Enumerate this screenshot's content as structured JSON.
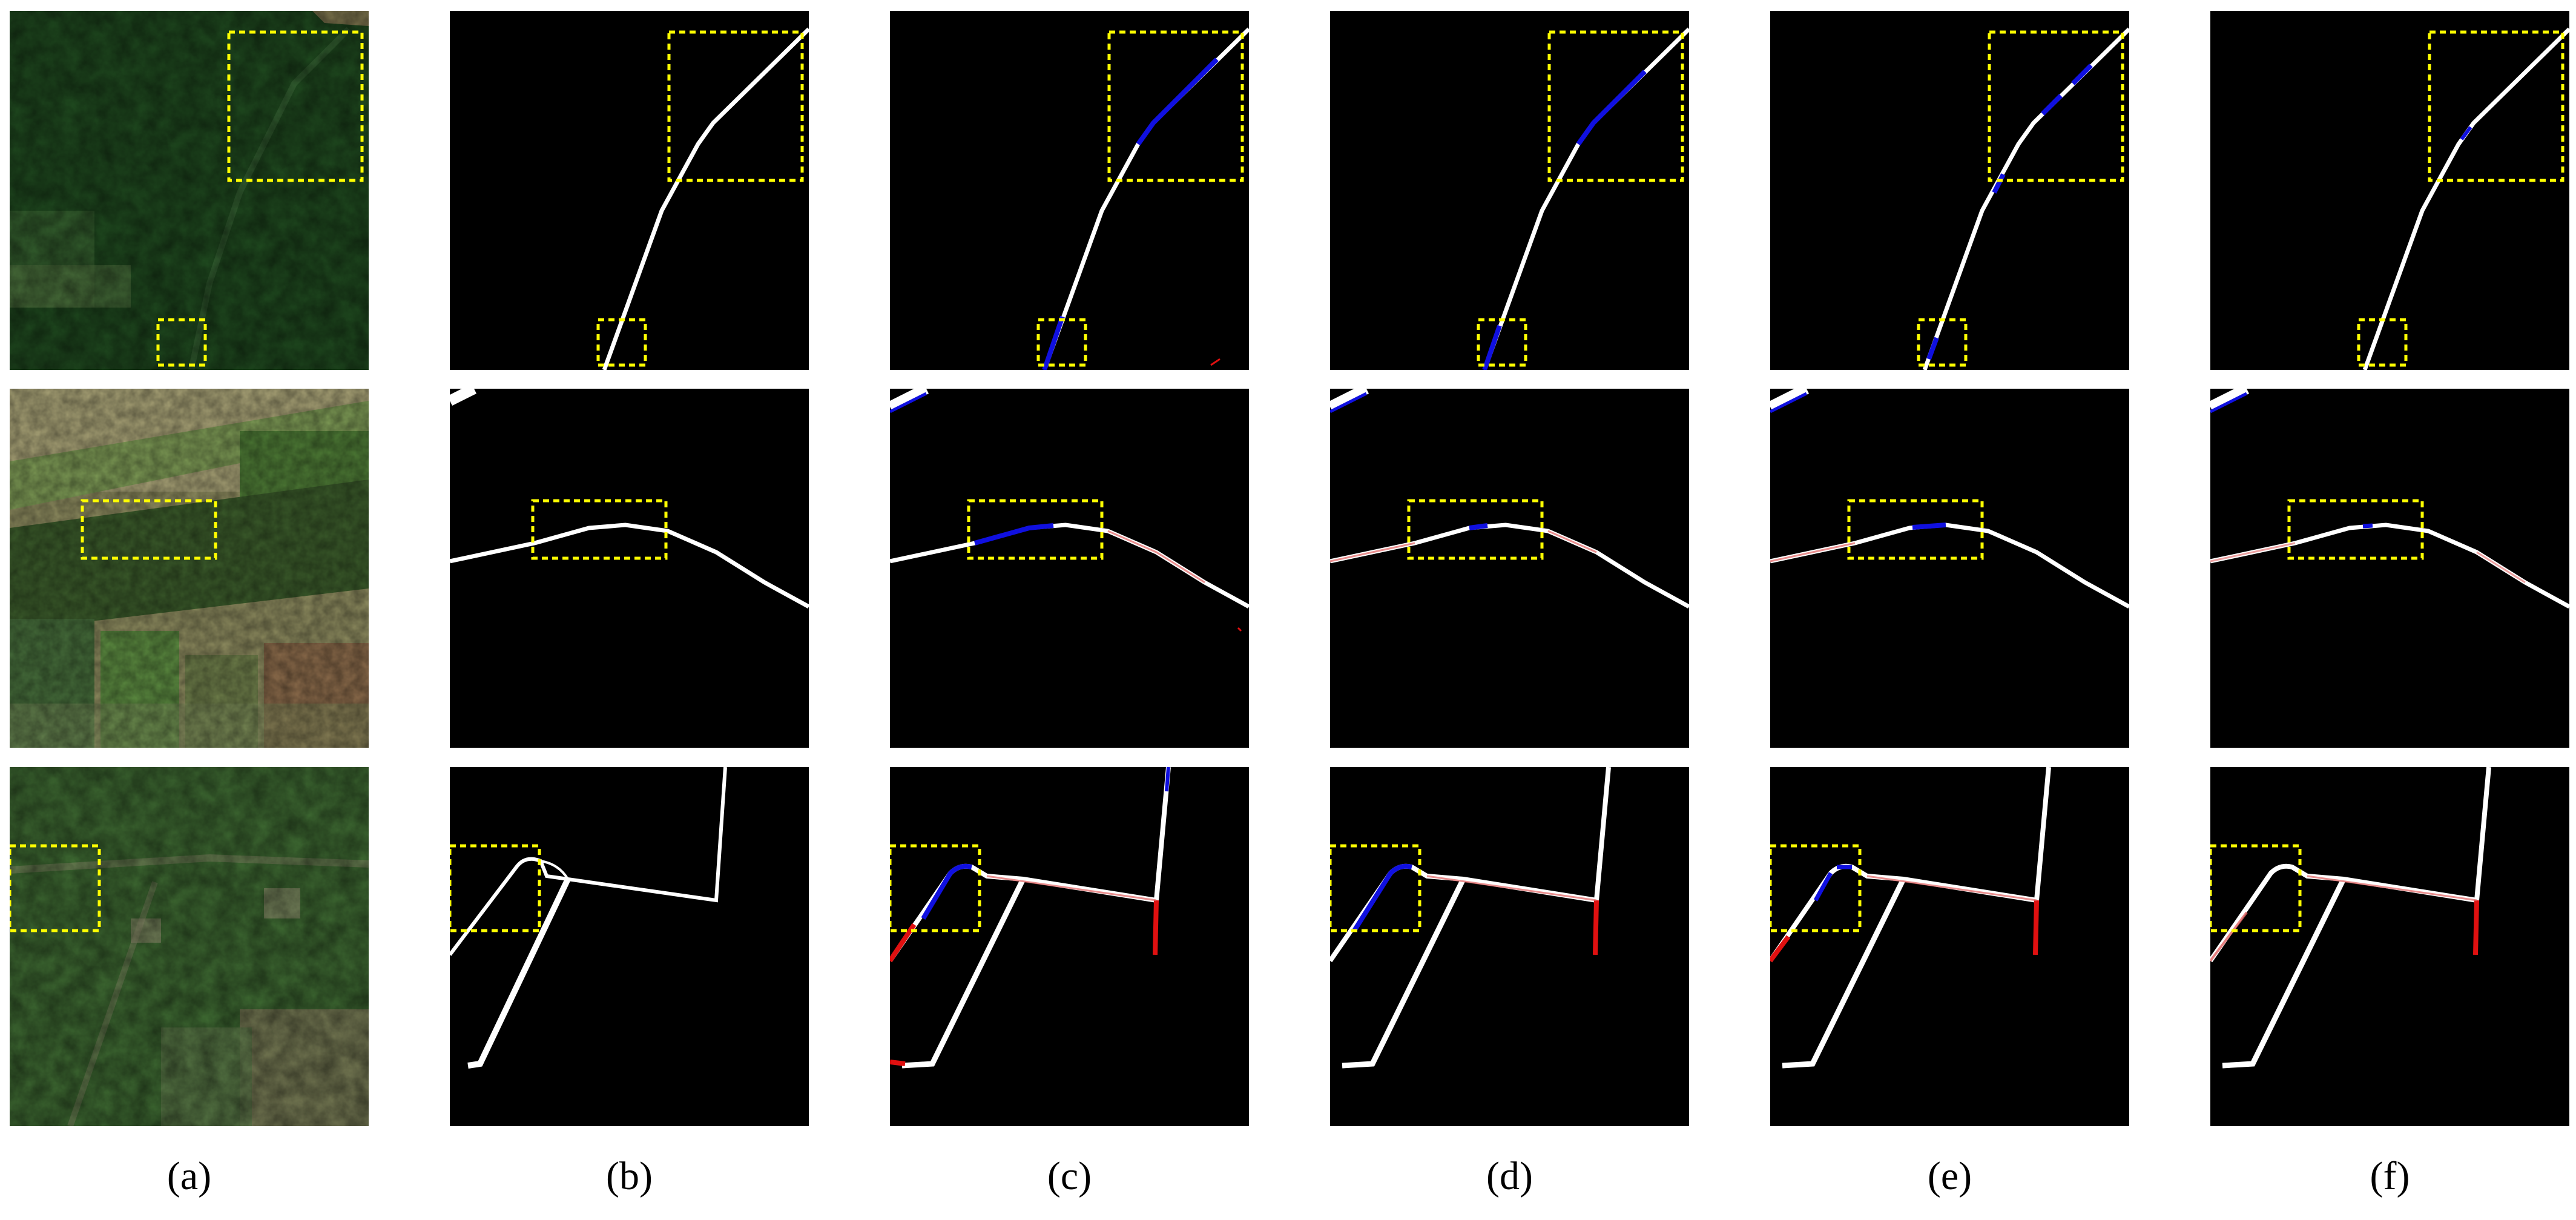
{
  "columns": [
    {
      "id": "a",
      "label": "(a)",
      "kind": "satellite"
    },
    {
      "id": "b",
      "label": "(b)",
      "kind": "ground-truth"
    },
    {
      "id": "c",
      "label": "(c)",
      "kind": "prediction"
    },
    {
      "id": "d",
      "label": "(d)",
      "kind": "prediction"
    },
    {
      "id": "e",
      "label": "(e)",
      "kind": "prediction"
    },
    {
      "id": "f",
      "label": "(f)",
      "kind": "prediction"
    }
  ],
  "colors": {
    "road_true_positive": "#ffffff",
    "road_false_negative": "#1010e0",
    "road_false_positive": "#e01010",
    "highlight_box": "#ffff00",
    "background": "#000000"
  }
}
